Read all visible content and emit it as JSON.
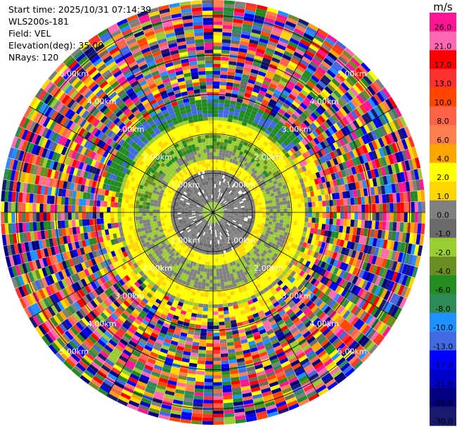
{
  "header": {
    "start_time": "Start time: 2025/10/31 07:14:39",
    "instrument": "WLS200s-181",
    "field": "Field: VEL",
    "elevation": "Elevation(deg): 35.00",
    "nrays": "NRays: 120"
  },
  "chart_data": {
    "type": "ppi-polar",
    "field": "VEL",
    "elevation_deg": 35.0,
    "nrays": 120,
    "range_rings_km": [
      1.0,
      2.0,
      3.0,
      4.0,
      5.0
    ],
    "ring_labels": [
      "1.00km",
      "2.00km",
      "3.00km",
      "4.00km",
      "5.00km"
    ],
    "max_range_km": 5.4,
    "colorbar": {
      "unit": "m/s",
      "tick_labels": [
        "26.0",
        "21.0",
        "17.0",
        "13.0",
        "10.0",
        "8.0",
        "6.0",
        "4.0",
        "2.0",
        "1.0",
        "0.0",
        "-1.0",
        "-2.0",
        "-4.0",
        "-6.0",
        "-8.0",
        "-10.0",
        "-13.0",
        "-17.0",
        "-21.0",
        "-26.0",
        "-30.0"
      ],
      "colors": [
        "#ff1493",
        "#ff69b4",
        "#ff0000",
        "#ff3030",
        "#ff4500",
        "#ff6347",
        "#ff7f50",
        "#ffa500",
        "#ffff00",
        "#ffd700",
        "#808080",
        "#696969",
        "#9acd32",
        "#6b8e23",
        "#228b22",
        "#2e8b57",
        "#1e90ff",
        "#4169e1",
        "#0000ff",
        "#0000cd",
        "#000080",
        "#191970"
      ]
    }
  }
}
